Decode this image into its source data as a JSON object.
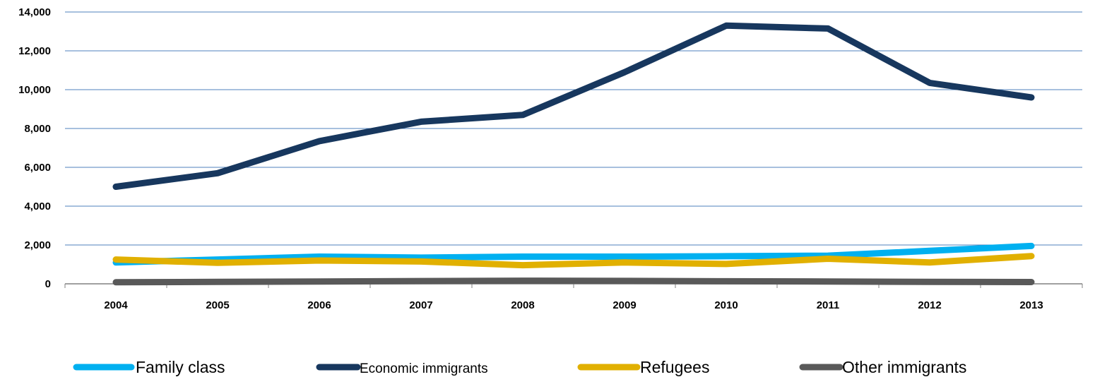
{
  "chart_data": {
    "type": "line",
    "title": "",
    "xlabel": "",
    "ylabel": "",
    "categories": [
      "2004",
      "2005",
      "2006",
      "2007",
      "2008",
      "2009",
      "2010",
      "2011",
      "2012",
      "2013"
    ],
    "ylim": [
      0,
      14000
    ],
    "yticks": [
      0,
      2000,
      4000,
      6000,
      8000,
      10000,
      12000,
      14000
    ],
    "ytick_labels": [
      "0",
      "2,000",
      "4,000",
      "6,000",
      "8,000",
      "10,000",
      "12,000",
      "14,000"
    ],
    "grid": "horizontal",
    "legend_position": "bottom",
    "series": [
      {
        "name": "Family class",
        "color": "#00b0f0",
        "values": [
          1100,
          1250,
          1400,
          1350,
          1400,
          1400,
          1420,
          1450,
          1700,
          1950
        ]
      },
      {
        "name": "Economic immigrants",
        "color": "#17375e",
        "values": [
          5000,
          5700,
          7350,
          8350,
          8700,
          10900,
          13300,
          13150,
          10350,
          9600
        ]
      },
      {
        "name": "Refugees",
        "color": "#e1b000",
        "values": [
          1250,
          1080,
          1200,
          1150,
          960,
          1100,
          1020,
          1290,
          1100,
          1430
        ]
      },
      {
        "name": "Other immigrants",
        "color": "#595959",
        "values": [
          80,
          100,
          120,
          140,
          160,
          150,
          130,
          120,
          100,
          90
        ]
      }
    ]
  }
}
